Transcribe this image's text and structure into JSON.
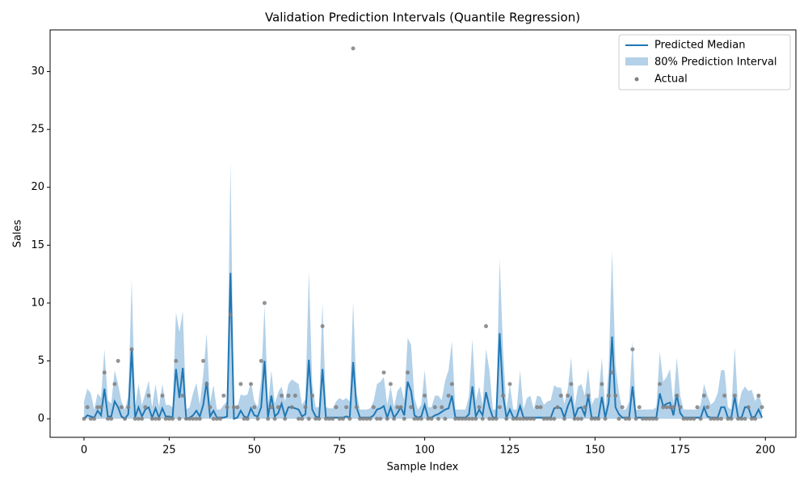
{
  "chart_data": {
    "type": "line",
    "title": "Validation Prediction Intervals (Quantile Regression)",
    "xlabel": "Sample Index",
    "ylabel": "Sales",
    "xlim": [
      -9.95,
      208.95
    ],
    "ylim": [
      -1.6,
      33.6
    ],
    "xticks": [
      0,
      25,
      50,
      75,
      100,
      125,
      150,
      175,
      200
    ],
    "yticks": [
      0,
      5,
      10,
      15,
      20,
      25,
      30
    ],
    "legend": "upper right",
    "x": [
      0,
      1,
      2,
      3,
      4,
      5,
      6,
      7,
      8,
      9,
      10,
      11,
      12,
      13,
      14,
      15,
      16,
      17,
      18,
      19,
      20,
      21,
      22,
      23,
      24,
      25,
      26,
      27,
      28,
      29,
      30,
      31,
      32,
      33,
      34,
      35,
      36,
      37,
      38,
      39,
      40,
      41,
      42,
      43,
      44,
      45,
      46,
      47,
      48,
      49,
      50,
      51,
      52,
      53,
      54,
      55,
      56,
      57,
      58,
      59,
      60,
      61,
      62,
      63,
      64,
      65,
      66,
      67,
      68,
      69,
      70,
      71,
      72,
      73,
      74,
      75,
      76,
      77,
      78,
      79,
      80,
      81,
      82,
      83,
      84,
      85,
      86,
      87,
      88,
      89,
      90,
      91,
      92,
      93,
      94,
      95,
      96,
      97,
      98,
      99,
      100,
      101,
      102,
      103,
      104,
      105,
      106,
      107,
      108,
      109,
      110,
      111,
      112,
      113,
      114,
      115,
      116,
      117,
      118,
      119,
      120,
      121,
      122,
      123,
      124,
      125,
      126,
      127,
      128,
      129,
      130,
      131,
      132,
      133,
      134,
      135,
      136,
      137,
      138,
      139,
      140,
      141,
      142,
      143,
      144,
      145,
      146,
      147,
      148,
      149,
      150,
      151,
      152,
      153,
      154,
      155,
      156,
      157,
      158,
      159,
      160,
      161,
      162,
      163,
      164,
      165,
      166,
      167,
      168,
      169,
      170,
      171,
      172,
      173,
      174,
      175,
      176,
      177,
      178,
      179,
      180,
      181,
      182,
      183,
      184,
      185,
      186,
      187,
      188,
      189,
      190,
      191,
      192,
      193,
      194,
      195,
      196,
      197,
      198,
      199
    ],
    "series": [
      {
        "name": "Predicted Median",
        "color": "#1f77b4",
        "values": [
          0,
          0.3,
          0.2,
          0.1,
          0.7,
          0.3,
          2.6,
          0.2,
          0.2,
          1.5,
          1.0,
          0.2,
          0,
          0.4,
          6.0,
          0.1,
          1.0,
          0.2,
          0.8,
          1.0,
          0.1,
          0.9,
          0.1,
          0.9,
          0.2,
          0.2,
          0.1,
          4.3,
          1.8,
          4.4,
          0,
          0.1,
          0.3,
          0.7,
          0.2,
          1.2,
          3.2,
          0.2,
          0.7,
          0.1,
          0.1,
          0.1,
          0.2,
          12.6,
          0,
          0.1,
          0.7,
          0.2,
          0.1,
          0.9,
          0.3,
          0.2,
          1.0,
          5.0,
          0.1,
          2.0,
          0.2,
          0.5,
          1.3,
          0.2,
          1.0,
          1.0,
          0.9,
          0.8,
          0.2,
          0.4,
          5.1,
          0.8,
          0.2,
          0.1,
          4.3,
          0.1,
          0.1,
          0.1,
          0.1,
          0.1,
          0.1,
          0.2,
          0.1,
          4.9,
          1.0,
          0.1,
          0.1,
          0.1,
          0.1,
          0.3,
          0.8,
          0.9,
          1.1,
          0.1,
          1.0,
          0.1,
          0.5,
          1.0,
          0.3,
          3.2,
          2.4,
          0.3,
          0.1,
          0.2,
          1.2,
          0.1,
          0.1,
          0.3,
          0.4,
          0.6,
          0.8,
          0.9,
          2.0,
          0.1,
          0.1,
          0.1,
          0.1,
          0.4,
          2.8,
          0.2,
          0.8,
          0.3,
          2.3,
          1.0,
          0.1,
          0.1,
          7.4,
          2.0,
          0.1,
          0.8,
          0.1,
          0.1,
          1.1,
          0.1,
          0.1,
          0.1,
          0.1,
          0.1,
          0.1,
          0.1,
          0.1,
          0.1,
          0.9,
          1.0,
          0.9,
          0.1,
          1.1,
          1.8,
          0.1,
          0.9,
          1.0,
          0.3,
          2.0,
          0.1,
          0.1,
          0.1,
          1.9,
          0.1,
          1.4,
          7.1,
          1.0,
          0.4,
          0.1,
          0.1,
          0.1,
          2.8,
          0.1,
          0.1,
          0.1,
          0.1,
          0.1,
          0.1,
          0.1,
          2.2,
          1.1,
          1.3,
          1.4,
          0.3,
          2.1,
          0.5,
          0.1,
          0.1,
          0.1,
          0.1,
          0.1,
          0.1,
          1.0,
          0.2,
          0.1,
          0.1,
          0.1,
          1.0,
          1.0,
          0.1,
          0.1,
          1.9,
          0.1,
          0.1,
          1.0,
          1.0,
          0.1,
          0.2,
          0.8,
          0.1
        ]
      }
    ],
    "band": {
      "name": "80% Prediction Interval",
      "color": "#b3d1e8",
      "lower": [
        0,
        0,
        0,
        0,
        0,
        0,
        0,
        0,
        0,
        0,
        0,
        0,
        0,
        0,
        0,
        0,
        0,
        0,
        0,
        0,
        0,
        0,
        0,
        0,
        0,
        0,
        0,
        0,
        0,
        0,
        0,
        0,
        0,
        0,
        0,
        0,
        0,
        0,
        0,
        0,
        0,
        0,
        0,
        0,
        0,
        0,
        0,
        0,
        0,
        0,
        0,
        0,
        0,
        0,
        0,
        0,
        0,
        0,
        0,
        0,
        0,
        0,
        0,
        0,
        0,
        0,
        0,
        0,
        0,
        0,
        0,
        0,
        0,
        0,
        0,
        0,
        0,
        0,
        0,
        0,
        0,
        0,
        0,
        0,
        0,
        0,
        0,
        0,
        0,
        0,
        0,
        0,
        0,
        0,
        0,
        0,
        0,
        0,
        0,
        0,
        0,
        0,
        0,
        0,
        0,
        0,
        0,
        0,
        0,
        0,
        0,
        0,
        0,
        0,
        0,
        0,
        0,
        0,
        0,
        0,
        0,
        0,
        0,
        0,
        0,
        0,
        0,
        0,
        0,
        0,
        0,
        0,
        0,
        0,
        0,
        0,
        0,
        0,
        0,
        0,
        0,
        0,
        0,
        0,
        0,
        0,
        0,
        0,
        0,
        0,
        0,
        0,
        0,
        0,
        0,
        0,
        0,
        0,
        0,
        0,
        0,
        0,
        0,
        0,
        0,
        0,
        0,
        0,
        0,
        0,
        0,
        0,
        0,
        0,
        0,
        0,
        0,
        0,
        0,
        0,
        0,
        0,
        0,
        0,
        0,
        0,
        0,
        0,
        0,
        0,
        0,
        0,
        0,
        0,
        0,
        0,
        0,
        0,
        0,
        0
      ],
      "upper": [
        1.5,
        2.6,
        2.2,
        0.8,
        2.2,
        1.8,
        6.0,
        1.6,
        1.3,
        4.2,
        3.0,
        1.5,
        0.8,
        1.9,
        12.0,
        1.0,
        3.0,
        1.2,
        2.2,
        3.3,
        1.0,
        3.0,
        1.0,
        3.0,
        1.2,
        1.2,
        1.0,
        9.2,
        7.5,
        9.3,
        0.8,
        1.0,
        2.2,
        3.1,
        1.2,
        3.8,
        7.4,
        1.4,
        2.9,
        0.8,
        0.8,
        1.2,
        1.5,
        22.2,
        0.8,
        1.0,
        2.1,
        2.0,
        2.1,
        3.2,
        1.5,
        1.0,
        3.4,
        9.8,
        1.2,
        4.2,
        1.3,
        2.3,
        2.8,
        1.5,
        3.0,
        3.4,
        3.2,
        3.0,
        1.2,
        1.7,
        12.8,
        3.0,
        1.0,
        1.0,
        10.1,
        1.0,
        0.9,
        0.9,
        1.5,
        1.8,
        1.6,
        1.8,
        1.5,
        10.1,
        2.2,
        0.8,
        0.8,
        0.8,
        0.9,
        1.5,
        3.0,
        3.2,
        3.6,
        1.2,
        2.8,
        1.0,
        2.4,
        2.8,
        1.6,
        7.0,
        6.4,
        1.8,
        0.8,
        1.2,
        4.2,
        1.0,
        1.0,
        2.0,
        2.0,
        1.6,
        3.3,
        4.2,
        6.7,
        0.8,
        0.8,
        0.8,
        0.8,
        2.0,
        6.9,
        1.5,
        2.8,
        1.2,
        6.0,
        4.2,
        0.8,
        0.8,
        13.9,
        6.0,
        0.8,
        3.0,
        0.8,
        0.8,
        4.2,
        0.8,
        1.8,
        2.0,
        0.8,
        2.0,
        1.9,
        1.2,
        1.5,
        1.6,
        2.9,
        2.7,
        2.7,
        1.3,
        2.6,
        5.3,
        1.0,
        2.8,
        3.0,
        2.0,
        4.4,
        1.2,
        1.8,
        1.8,
        5.3,
        0.8,
        4.3,
        14.5,
        4.6,
        2.3,
        0.8,
        0.8,
        1.5,
        6.7,
        0.8,
        0.8,
        0.8,
        0.8,
        0.8,
        0.8,
        1.0,
        5.8,
        3.2,
        3.6,
        4.3,
        1.3,
        5.3,
        2.0,
        0.8,
        0.8,
        0.8,
        0.8,
        0.8,
        1.2,
        3.0,
        2.0,
        1.2,
        1.5,
        2.2,
        4.2,
        4.2,
        1.0,
        0.8,
        6.2,
        1.0,
        2.3,
        2.8,
        2.4,
        2.5,
        1.5,
        2.2,
        1.2
      ]
    },
    "actual": {
      "name": "Actual",
      "color": "#808080",
      "values": [
        0,
        1,
        0,
        0,
        1,
        1,
        4,
        0,
        0,
        3,
        5,
        1,
        0,
        1,
        6,
        0,
        0,
        0,
        1,
        2,
        0,
        0,
        0,
        2,
        0,
        0,
        0,
        5,
        0,
        2,
        0,
        0,
        0,
        0,
        0,
        5,
        3,
        1,
        0,
        0,
        0,
        2,
        1,
        9,
        1,
        1,
        3,
        0,
        0,
        3,
        1,
        0,
        5,
        10,
        0,
        1,
        0,
        1,
        2,
        0,
        2,
        1,
        2,
        0,
        0,
        1,
        0,
        2,
        0,
        0,
        8,
        0,
        0,
        0,
        1,
        0,
        0,
        1,
        0,
        32,
        1,
        0,
        0,
        0,
        0,
        1,
        0,
        0,
        4,
        0,
        3,
        0,
        1,
        1,
        0,
        4,
        1,
        0,
        0,
        0,
        2,
        0,
        0,
        1,
        0,
        1,
        0,
        2,
        3,
        0,
        0,
        0,
        0,
        0,
        0,
        0,
        1,
        0,
        8,
        0,
        0,
        0,
        1,
        2,
        0,
        3,
        0,
        0,
        0,
        0,
        0,
        0,
        0,
        1,
        1,
        0,
        0,
        0,
        0,
        1,
        2,
        0,
        2,
        3,
        0,
        0,
        0,
        1,
        2,
        0,
        0,
        0,
        3,
        0,
        2,
        4,
        2,
        0,
        1,
        0,
        0,
        6,
        0,
        1,
        0,
        0,
        0,
        0,
        0,
        3,
        1,
        1,
        1,
        1,
        2,
        1,
        0,
        0,
        0,
        0,
        1,
        0,
        2,
        1,
        0,
        0,
        0,
        0,
        2,
        0,
        0,
        2,
        0,
        0,
        0,
        1,
        0,
        0,
        2,
        1
      ]
    }
  }
}
